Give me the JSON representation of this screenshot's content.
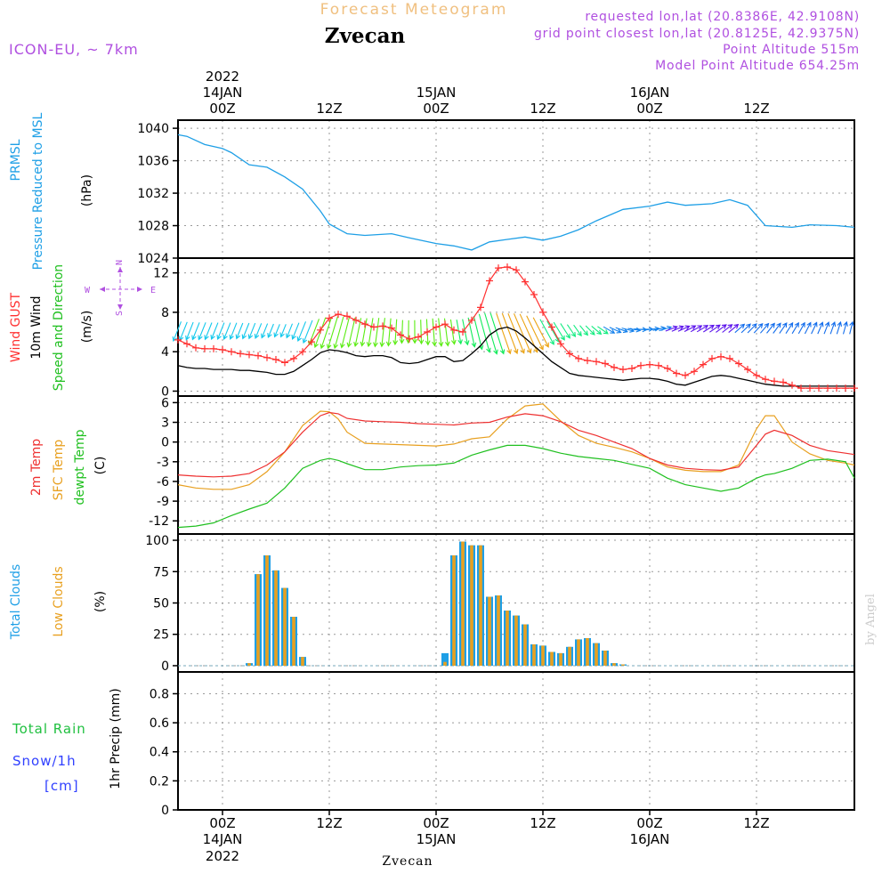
{
  "header": {
    "top_title": "Forecast Meteogram",
    "station": "Zvecan",
    "model": "ICON-EU, ~ 7km",
    "requested": "requested lon,lat (20.8386E, 42.9108N)",
    "grid_point": "grid point closest lon,lat (20.8125E, 42.9375N)",
    "point_altitude": "Point Altitude 515m",
    "model_altitude": "Model Point Altitude 654.25m",
    "footer_station": "Zvecan",
    "watermark": "by Angel"
  },
  "time_axis": {
    "year": "2022",
    "ticks": [
      "00Z",
      "12Z",
      "00Z",
      "12Z",
      "00Z",
      "12Z"
    ],
    "dates": [
      "14JAN",
      "15JAN",
      "16JAN"
    ],
    "unit": "hours from 14JAN 00Z",
    "range": [
      -5,
      71
    ]
  },
  "wind_compass": {
    "n": "N",
    "s": "S",
    "e": "E",
    "w": "W"
  },
  "panels": {
    "pressure": {
      "labels": [
        "PRMSL",
        "Pressure Reduced to MSL"
      ],
      "unit": "(hPa)",
      "ticks": [
        1024,
        1028,
        1032,
        1036,
        1040
      ]
    },
    "wind": {
      "labels": [
        "Wind GUST",
        "10m Wind",
        "Speed and Direction"
      ],
      "unit": "(m/s)",
      "ticks": [
        0,
        4,
        8,
        12
      ]
    },
    "temp": {
      "labels": [
        "2m Temp",
        "SFC Temp",
        "dewpt Temp"
      ],
      "unit": "(C)",
      "ticks": [
        -12,
        -9,
        -6,
        -3,
        0,
        3,
        6
      ]
    },
    "clouds": {
      "labels": [
        "Total Clouds",
        "Low Clouds"
      ],
      "unit": "(%)",
      "ticks": [
        0,
        25,
        50,
        75,
        100
      ]
    },
    "precip": {
      "labels": [
        "Total Rain",
        "Snow/1h",
        "[cm]"
      ],
      "unit": "1hr Precip (mm)",
      "ticks": [
        "0",
        "0.2",
        "0.4",
        "0.6",
        "0.8"
      ]
    }
  },
  "colors": {
    "pressure": "#1e9fe6",
    "gust": "#ff3030",
    "wind10m": "#000000",
    "temp2m": "#ee3030",
    "sfc": "#e8a020",
    "dewpt": "#20c020",
    "total_clouds": "#1e9fe6",
    "low_clouds": "#e8a020",
    "purple": "#b050e0",
    "orange_title": "#f0c080",
    "rain": "#20c040",
    "snow": "#3040ff"
  },
  "chart_data": [
    {
      "type": "line",
      "title": "PRMSL Pressure Reduced to MSL",
      "ylabel": "(hPa)",
      "ylim": [
        1024,
        1041
      ],
      "x": [
        -5,
        -4,
        -2,
        0,
        1,
        3,
        5,
        7,
        9,
        11,
        12,
        14,
        16,
        19,
        21,
        24,
        26,
        28,
        30,
        32,
        34,
        36,
        38,
        40,
        42,
        45,
        48,
        50,
        52,
        55,
        57,
        59,
        61,
        64,
        66,
        69,
        71
      ],
      "series": [
        {
          "name": "PRMSL",
          "values": [
            1039.2,
            1039.0,
            1038.0,
            1037.5,
            1037.0,
            1035.5,
            1035.2,
            1034.0,
            1032.5,
            1029.8,
            1028.2,
            1027.0,
            1026.8,
            1027.0,
            1026.5,
            1025.8,
            1025.5,
            1025.0,
            1026.0,
            1026.3,
            1026.6,
            1026.2,
            1026.7,
            1027.5,
            1028.6,
            1030.0,
            1030.4,
            1030.9,
            1030.5,
            1030.7,
            1031.2,
            1030.5,
            1028.0,
            1027.8,
            1028.1,
            1028.0,
            1027.8
          ]
        }
      ]
    },
    {
      "type": "line",
      "title": "Wind GUST / 10m Wind Speed and Direction",
      "ylabel": "(m/s)",
      "ylim": [
        -0.5,
        13.5
      ],
      "x": [
        -5,
        -4,
        -3,
        -2,
        -1,
        0,
        1,
        2,
        3,
        4,
        5,
        6,
        7,
        8,
        9,
        10,
        11,
        12,
        13,
        14,
        15,
        16,
        17,
        18,
        19,
        20,
        21,
        22,
        23,
        24,
        25,
        26,
        27,
        28,
        29,
        30,
        31,
        32,
        33,
        34,
        35,
        36,
        37,
        38,
        39,
        40,
        41,
        42,
        43,
        44,
        45,
        46,
        47,
        48,
        49,
        50,
        51,
        52,
        53,
        54,
        55,
        56,
        57,
        58,
        59,
        60,
        61,
        62,
        63,
        64,
        65,
        66,
        67,
        68,
        69,
        70,
        71
      ],
      "series": [
        {
          "name": "Wind GUST",
          "values": [
            5.2,
            4.8,
            4.4,
            4.3,
            4.3,
            4.2,
            4.0,
            3.8,
            3.7,
            3.6,
            3.4,
            3.2,
            2.9,
            3.3,
            4.0,
            5.0,
            6.2,
            7.4,
            7.8,
            7.6,
            7.2,
            6.8,
            6.5,
            6.6,
            6.4,
            5.7,
            5.3,
            5.5,
            6.0,
            6.5,
            6.8,
            6.2,
            6.0,
            7.2,
            8.5,
            11.2,
            12.5,
            12.6,
            12.3,
            11.1,
            9.8,
            8.0,
            6.5,
            4.8,
            3.8,
            3.3,
            3.1,
            3.0,
            2.8,
            2.4,
            2.2,
            2.3,
            2.6,
            2.7,
            2.6,
            2.3,
            1.8,
            1.6,
            2.0,
            2.7,
            3.3,
            3.5,
            3.3,
            2.8,
            2.2,
            1.6,
            1.2,
            1.0,
            0.9,
            0.6,
            0.3,
            0.3,
            0.3,
            0.3,
            0.3,
            0.3,
            0.3
          ]
        },
        {
          "name": "10m Wind",
          "values": [
            2.6,
            2.4,
            2.3,
            2.3,
            2.2,
            2.2,
            2.2,
            2.1,
            2.1,
            2.0,
            1.9,
            1.7,
            1.7,
            2.0,
            2.6,
            3.2,
            3.9,
            4.2,
            4.1,
            3.9,
            3.6,
            3.5,
            3.6,
            3.6,
            3.4,
            2.9,
            2.8,
            2.9,
            3.2,
            3.5,
            3.5,
            3.0,
            3.1,
            3.8,
            4.6,
            5.7,
            6.3,
            6.5,
            6.1,
            5.4,
            4.6,
            3.8,
            3.0,
            2.4,
            1.8,
            1.6,
            1.5,
            1.4,
            1.3,
            1.2,
            1.1,
            1.2,
            1.3,
            1.3,
            1.2,
            1.0,
            0.7,
            0.6,
            0.9,
            1.2,
            1.5,
            1.6,
            1.5,
            1.3,
            1.1,
            0.9,
            0.7,
            0.6,
            0.5,
            0.5,
            0.5,
            0.5,
            0.5,
            0.5,
            0.5,
            0.5,
            0.5
          ]
        }
      ]
    },
    {
      "type": "line",
      "title": "2m Temp / SFC Temp / dewpt Temp",
      "ylabel": "(C)",
      "ylim": [
        -14,
        7
      ],
      "x": [
        -5,
        -3,
        -1,
        1,
        3,
        5,
        7,
        9,
        11,
        12,
        13,
        14,
        16,
        18,
        20,
        22,
        24,
        26,
        28,
        30,
        32,
        34,
        36,
        38,
        40,
        42,
        44,
        46,
        48,
        50,
        52,
        54,
        56,
        58,
        60,
        61,
        62,
        64,
        66,
        68,
        70,
        71
      ],
      "series": [
        {
          "name": "2m Temp",
          "values": [
            -5.0,
            -5.2,
            -5.3,
            -5.2,
            -4.8,
            -3.5,
            -1.5,
            1.5,
            4.0,
            4.5,
            4.3,
            3.6,
            3.2,
            3.1,
            3.0,
            2.8,
            2.7,
            2.6,
            2.9,
            3.0,
            3.8,
            4.3,
            4.0,
            3.1,
            1.8,
            1.0,
            0.0,
            -1.0,
            -2.5,
            -3.5,
            -4.0,
            -4.2,
            -4.3,
            -3.8,
            -0.5,
            1.2,
            1.8,
            1.0,
            -0.5,
            -1.3,
            -1.7,
            -1.9
          ]
        },
        {
          "name": "SFC Temp",
          "values": [
            -6.5,
            -7.0,
            -7.2,
            -7.2,
            -6.5,
            -4.5,
            -1.5,
            2.5,
            4.7,
            4.6,
            3.5,
            1.5,
            -0.2,
            -0.3,
            -0.4,
            -0.5,
            -0.6,
            -0.3,
            0.5,
            0.8,
            3.5,
            5.5,
            5.8,
            3.2,
            1.0,
            -0.2,
            -0.8,
            -1.5,
            -2.5,
            -3.8,
            -4.3,
            -4.5,
            -4.5,
            -3.5,
            2.0,
            4.0,
            4.0,
            0.0,
            -1.8,
            -2.8,
            -3.2,
            -3.5
          ]
        },
        {
          "name": "dewpt Temp",
          "values": [
            -13.0,
            -12.8,
            -12.3,
            -11.2,
            -10.2,
            -9.3,
            -7.0,
            -4.0,
            -2.8,
            -2.5,
            -2.8,
            -3.3,
            -4.2,
            -4.2,
            -3.8,
            -3.6,
            -3.5,
            -3.2,
            -2.0,
            -1.2,
            -0.5,
            -0.5,
            -1.0,
            -1.7,
            -2.2,
            -2.5,
            -2.8,
            -3.4,
            -4.0,
            -5.5,
            -6.5,
            -7.0,
            -7.5,
            -7.0,
            -5.5,
            -5.0,
            -4.8,
            -4.0,
            -2.8,
            -2.6,
            -3.0,
            -5.5
          ]
        }
      ]
    },
    {
      "type": "bar",
      "title": "Total Clouds / Low Clouds",
      "ylabel": "(%)",
      "ylim": [
        -5,
        105
      ],
      "categories": [
        3,
        4,
        5,
        6,
        7,
        8,
        9,
        25,
        26,
        27,
        28,
        29,
        30,
        31,
        32,
        33,
        34,
        35,
        36,
        37,
        38,
        39,
        40,
        41,
        42,
        43,
        44,
        45
      ],
      "series": [
        {
          "name": "Total Clouds",
          "values": [
            2,
            73,
            88,
            76,
            62,
            39,
            7,
            10,
            88,
            99,
            96,
            96,
            55,
            56,
            44,
            40,
            33,
            17,
            16,
            11,
            10,
            15,
            21,
            22,
            18,
            12,
            2,
            1
          ]
        },
        {
          "name": "Low Clouds",
          "values": [
            2,
            73,
            88,
            76,
            62,
            39,
            7,
            3,
            88,
            99,
            96,
            96,
            55,
            56,
            44,
            40,
            33,
            17,
            16,
            11,
            10,
            15,
            21,
            22,
            18,
            12,
            2,
            1
          ]
        }
      ]
    },
    {
      "type": "bar",
      "title": "1hr Precip (mm)",
      "ylabel": "1hr Precip (mm)",
      "ylim": [
        0,
        0.95
      ],
      "categories": [],
      "series": [
        {
          "name": "Total Rain",
          "values": []
        }
      ]
    }
  ]
}
